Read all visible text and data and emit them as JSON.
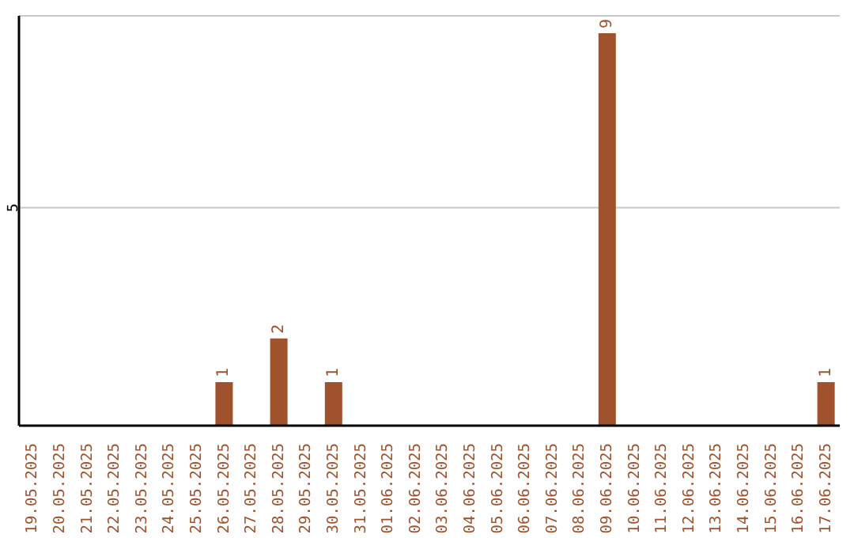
{
  "chart_data": {
    "type": "bar",
    "categories": [
      "19.05.2025",
      "20.05.2025",
      "21.05.2025",
      "22.05.2025",
      "23.05.2025",
      "24.05.2025",
      "25.05.2025",
      "26.05.2025",
      "27.05.2025",
      "28.05.2025",
      "29.05.2025",
      "30.05.2025",
      "31.05.2025",
      "01.06.2025",
      "02.06.2025",
      "03.06.2025",
      "04.06.2025",
      "05.06.2025",
      "06.06.2025",
      "07.06.2025",
      "08.06.2025",
      "09.06.2025",
      "10.06.2025",
      "11.06.2025",
      "12.06.2025",
      "13.06.2025",
      "14.06.2025",
      "15.06.2025",
      "16.06.2025",
      "17.06.2025"
    ],
    "values": [
      0,
      0,
      0,
      0,
      0,
      0,
      0,
      1,
      0,
      2,
      0,
      1,
      0,
      0,
      0,
      0,
      0,
      0,
      0,
      0,
      0,
      9,
      0,
      0,
      0,
      0,
      0,
      0,
      0,
      1
    ],
    "value_labels": [
      null,
      null,
      null,
      null,
      null,
      null,
      null,
      "1",
      null,
      "2",
      null,
      "1",
      null,
      null,
      null,
      null,
      null,
      null,
      null,
      null,
      null,
      "9",
      null,
      null,
      null,
      null,
      null,
      null,
      null,
      "1"
    ],
    "color": "#a0522d",
    "ylim": [
      0,
      9.4
    ],
    "yticks": [
      5
    ],
    "grid": "y"
  }
}
